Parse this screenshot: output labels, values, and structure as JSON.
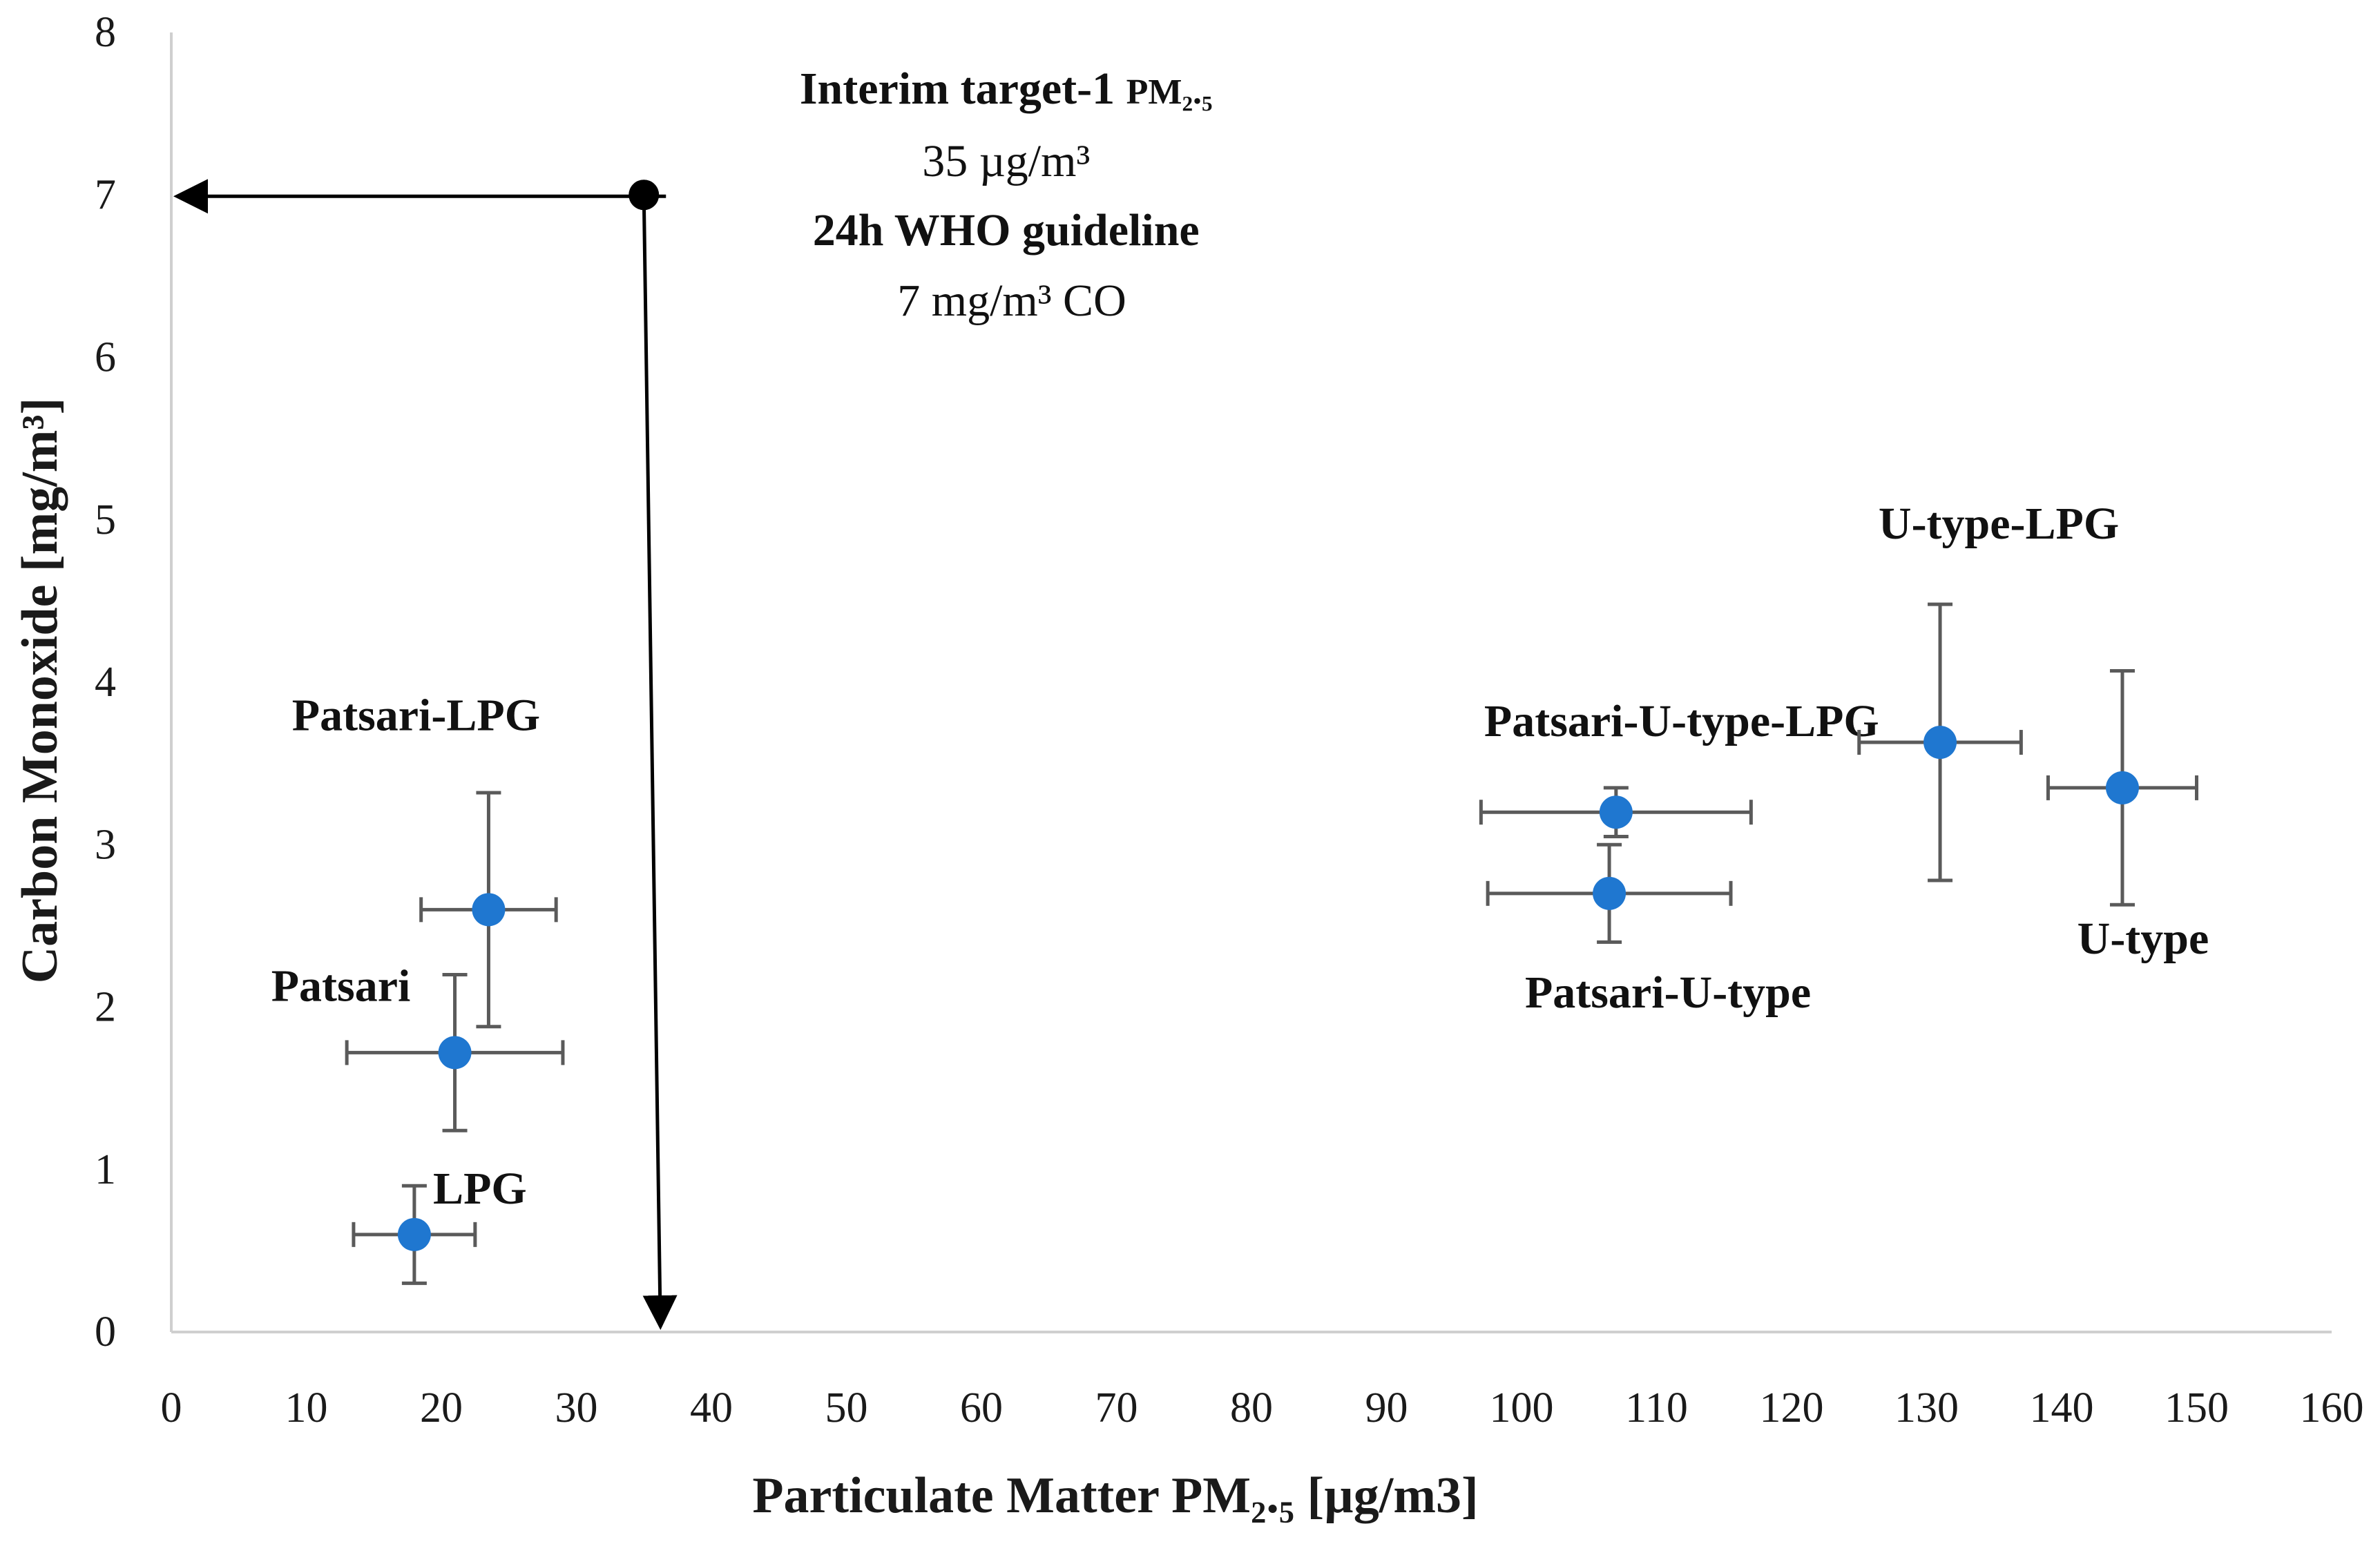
{
  "chart_data": {
    "type": "scatter",
    "xlabel": "Particulate Matter PM₂.₅ [µg/m3]",
    "ylabel": "Carbon Monoxide [mg/m³]",
    "xlim": [
      0,
      160
    ],
    "ylim": [
      0,
      8
    ],
    "x_ticks": [
      0,
      10,
      20,
      30,
      40,
      50,
      60,
      70,
      80,
      90,
      100,
      110,
      120,
      130,
      140,
      150,
      160
    ],
    "y_ticks": [
      0,
      1,
      2,
      3,
      4,
      5,
      6,
      7,
      8
    ],
    "grid": false,
    "marker_color": "#1f77d0",
    "errorbar_color": "#5a5a5a",
    "points": [
      {
        "label": "LPG",
        "x": 18,
        "y": 0.6,
        "x_err": [
          4.5,
          4.5
        ],
        "y_err": [
          0.3,
          0.3
        ]
      },
      {
        "label": "Patsari",
        "x": 21,
        "y": 1.72,
        "x_err": [
          8,
          8
        ],
        "y_err": [
          0.48,
          0.48
        ]
      },
      {
        "label": "Patsari-LPG",
        "x": 23.5,
        "y": 2.6,
        "x_err": [
          5,
          5
        ],
        "y_err": [
          0.72,
          0.72
        ]
      },
      {
        "label": "Patsari-U-type",
        "x": 106.5,
        "y": 2.7,
        "x_err": [
          9,
          9
        ],
        "y_err": [
          0.3,
          0.3
        ]
      },
      {
        "label": "Patsari-U-type-LPG",
        "x": 107,
        "y": 3.2,
        "x_err": [
          10,
          10
        ],
        "y_err": [
          0.15,
          0.15
        ]
      },
      {
        "label": "U-type-LPG",
        "x": 131,
        "y": 3.63,
        "x_err": [
          6,
          6
        ],
        "y_err": [
          0.85,
          0.85
        ]
      },
      {
        "label": "U-type",
        "x": 144.5,
        "y": 3.35,
        "x_err": [
          5.5,
          5.5
        ],
        "y_err": [
          0.72,
          0.72
        ]
      }
    ],
    "guideline": {
      "x": 35,
      "y": 7,
      "text": {
        "line1_bold": "Interim target-1 ",
        "line1_small": "PM₂.₅",
        "line2": "35 µg/m³",
        "line3_bold": "24h WHO guideline",
        "line4": "7 mg/m³ CO"
      }
    }
  }
}
